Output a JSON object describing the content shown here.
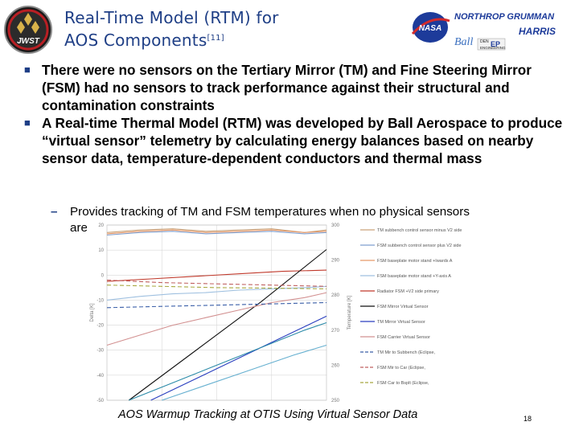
{
  "title_line1": "Real-Time Model (RTM) for",
  "title_line2": "AOS Components",
  "title_ref": "[11]",
  "logos": {
    "jwst": "JWST",
    "nasa": "NASA",
    "northrop": "NORTHROP GRUMMAN",
    "harris": "HARRIS",
    "ball": "Ball",
    "engineering": "ENGINEERING"
  },
  "bullets": [
    "There were no sensors on the Tertiary Mirror (TM) and Fine Steering Mirror (FSM) had no sensors to track performance against their structural and contamination constraints",
    "A Real-time Thermal Model (RTM) was developed by Ball Aerospace to produce “virtual sensor” telemetry by calculating energy balances based on nearby sensor data, temperature-dependent conductors and thermal mass"
  ],
  "sub_bullet_line1": "Provides tracking of TM and FSM temperatures when no physical sensors",
  "sub_bullet_line2": "are",
  "chart_data": {
    "type": "line",
    "ylabel_left": "Delta [K]",
    "ylabel_right": "Temperature [K]",
    "yticks_left": [
      "20",
      "10",
      "0",
      "-10",
      "-20",
      "-30",
      "-40",
      "-50"
    ],
    "yticks_right": [
      "300",
      "290",
      "280",
      "270",
      "260",
      "250"
    ],
    "ylim_left": [
      -50,
      20
    ],
    "ylim_right": [
      250,
      300
    ],
    "grid": true,
    "legend_position": "right",
    "series": [
      {
        "name": "TM subbench control sensor minus V2 side",
        "color": "#c9a27a",
        "style": "solid",
        "axis": "left",
        "x": [
          0,
          0.15,
          0.3,
          0.45,
          0.6,
          0.75,
          0.9,
          1.0
        ],
        "values": [
          17,
          18,
          18.5,
          17.5,
          18,
          18.5,
          17,
          18
        ]
      },
      {
        "name": "FSM subbench control sensor plus V2 side",
        "color": "#7f9fcf",
        "style": "solid",
        "axis": "left",
        "x": [
          0,
          0.15,
          0.3,
          0.45,
          0.6,
          0.75,
          0.9,
          1.0
        ],
        "values": [
          16,
          17,
          17.5,
          16.5,
          17,
          17.5,
          16.5,
          17
        ]
      },
      {
        "name": "FSM baseplate motor stand +Iwards A",
        "color": "#e89a6a",
        "style": "solid",
        "axis": "left",
        "x": [
          0,
          0.15,
          0.3,
          0.45,
          0.6,
          0.75,
          0.9,
          1.0
        ],
        "values": [
          16.5,
          17.5,
          18,
          17,
          17.5,
          18,
          17,
          17.5
        ]
      },
      {
        "name": "FSM baseplate motor stand +Y-axis A",
        "color": "#9fc0e0",
        "style": "solid",
        "axis": "left",
        "x": [
          0,
          0.15,
          0.3,
          0.45,
          0.6,
          0.75,
          0.9,
          1.0
        ],
        "values": [
          -10,
          -8.5,
          -7.5,
          -7,
          -6,
          -5.5,
          -5,
          -4.5
        ]
      },
      {
        "name": "Radiator FSM +V2 side primary",
        "color": "#c0392b",
        "style": "solid",
        "axis": "left",
        "x": [
          0,
          0.2,
          0.4,
          0.6,
          0.8,
          1.0
        ],
        "values": [
          -2.5,
          -1.5,
          -0.5,
          0.5,
          1.5,
          2
        ]
      },
      {
        "name": "FSM Mirror Virtual Sensor",
        "color": "#111111",
        "style": "solid",
        "axis": "right",
        "x": [
          0.1,
          0.4,
          0.7,
          1.0
        ],
        "values": [
          250,
          264,
          278,
          293
        ]
      },
      {
        "name": "TM Mirror Virtual Sensor",
        "color": "#2a3fbf",
        "style": "solid",
        "axis": "right",
        "x": [
          0.2,
          0.5,
          0.8,
          1.0
        ],
        "values": [
          250,
          259,
          268,
          274
        ]
      },
      {
        "name": "FSM Carrier Virtual Sensor",
        "color": "#d29090",
        "style": "solid",
        "axis": "left",
        "x": [
          0,
          0.15,
          0.3,
          0.45,
          0.6,
          0.75,
          0.9,
          1.0
        ],
        "values": [
          -28,
          -24,
          -20,
          -17,
          -14,
          -11,
          -9,
          -7
        ]
      },
      {
        "name": "TM Mir to Subbench (Eclipse,",
        "color": "#3a5fa8",
        "style": "dashed",
        "axis": "left",
        "x": [
          0,
          0.25,
          0.5,
          0.75,
          1.0
        ],
        "values": [
          -13,
          -12.5,
          -12,
          -11.5,
          -11
        ]
      },
      {
        "name": "FSM Mir to Car (Eclipse,",
        "color": "#c06060",
        "style": "dashed",
        "axis": "left",
        "x": [
          0,
          0.25,
          0.5,
          0.75,
          1.0
        ],
        "values": [
          -2,
          -3,
          -3.5,
          -4,
          -4.5
        ]
      },
      {
        "name": "FSM Car to Bsplt (Eclipse,",
        "color": "#a8a840",
        "style": "dashed",
        "axis": "left",
        "x": [
          0,
          0.25,
          0.5,
          0.75,
          1.0
        ],
        "values": [
          -4,
          -4.5,
          -5,
          -5.2,
          -5.5
        ]
      },
      {
        "name": "",
        "color": "#2a8aa8",
        "style": "solid",
        "axis": "left",
        "x": [
          0.1,
          0.3,
          0.5,
          0.7,
          0.9,
          1.0
        ],
        "values": [
          -50,
          -43,
          -36,
          -29,
          -22,
          -19
        ]
      },
      {
        "name": "",
        "color": "#66b0d0",
        "style": "solid",
        "axis": "left",
        "x": [
          0.25,
          0.45,
          0.65,
          0.85,
          1.0
        ],
        "values": [
          -50,
          -44,
          -38,
          -32,
          -28
        ]
      }
    ]
  },
  "caption": "AOS Warmup Tracking at OTIS Using Virtual Sensor Data",
  "page_number": "18"
}
